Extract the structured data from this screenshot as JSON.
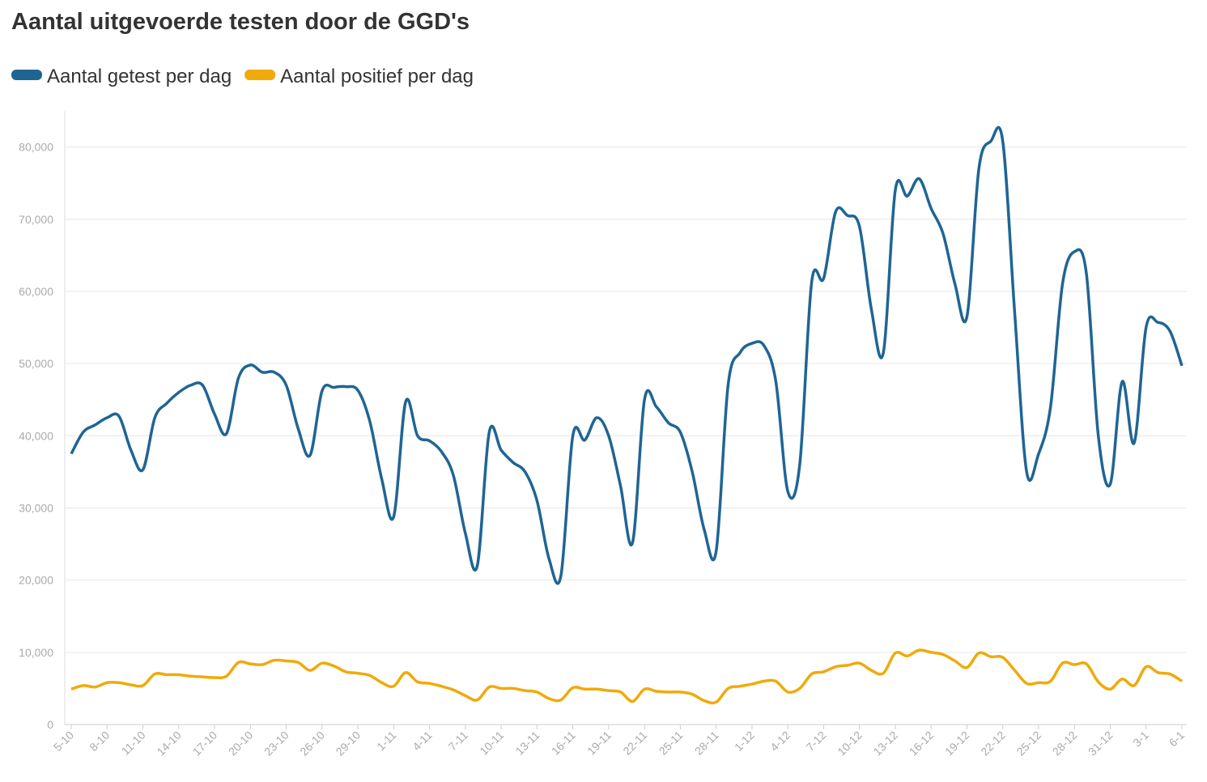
{
  "chart_data": {
    "type": "line",
    "title": "Aantal uitgevoerde testen door de GGD's",
    "categories": [
      "5-10",
      null,
      null,
      "8-10",
      null,
      null,
      "11-10",
      null,
      null,
      "14-10",
      null,
      null,
      "17-10",
      null,
      null,
      "20-10",
      null,
      null,
      "23-10",
      null,
      null,
      "26-10",
      null,
      null,
      "29-10",
      null,
      null,
      "1-11",
      null,
      null,
      "4-11",
      null,
      null,
      "7-11",
      null,
      null,
      "10-11",
      null,
      null,
      "13-11",
      null,
      null,
      "16-11",
      null,
      null,
      "19-11",
      null,
      null,
      "22-11",
      null,
      null,
      "25-11",
      null,
      null,
      "28-11",
      null,
      null,
      "1-12",
      null,
      null,
      "4-12",
      null,
      null,
      "7-12",
      null,
      null,
      "10-12",
      null,
      null,
      "13-12",
      null,
      null,
      "16-12",
      null,
      null,
      "19-12",
      null,
      null,
      "22-12",
      null,
      null,
      "25-12",
      null,
      null,
      "28-12",
      null,
      null,
      "31-12",
      null,
      null,
      "3-1",
      null,
      null,
      "6-1"
    ],
    "series": [
      {
        "name": "Aantal getest per dag",
        "color": "#1f6594",
        "values": [
          37500,
          40500,
          41500,
          42500,
          42700,
          38000,
          35300,
          42500,
          44500,
          46000,
          47000,
          47000,
          43000,
          40300,
          48000,
          49800,
          48800,
          48800,
          47000,
          41000,
          37300,
          46200,
          46700,
          46800,
          46300,
          42000,
          34000,
          28800,
          44700,
          40000,
          39300,
          37800,
          34500,
          26500,
          22000,
          40500,
          38000,
          36300,
          35000,
          31000,
          23000,
          20600,
          40000,
          39400,
          42500,
          40000,
          33000,
          25200,
          45000,
          44000,
          41800,
          40500,
          35000,
          27000,
          24000,
          47000,
          51500,
          52800,
          52500,
          47500,
          32300,
          36000,
          61300,
          61800,
          71000,
          70500,
          69000,
          57500,
          51500,
          74000,
          73200,
          75600,
          71500,
          68000,
          61000,
          56500,
          77000,
          80800,
          80800,
          57000,
          35000,
          37500,
          44000,
          61000,
          65500,
          62500,
          40000,
          33300,
          47500,
          39000,
          55000,
          55700,
          54500,
          49700
        ]
      },
      {
        "name": "Aantal positief per dag",
        "color": "#f0aa0a",
        "values": [
          4900,
          5400,
          5200,
          5800,
          5800,
          5500,
          5400,
          7000,
          6900,
          6900,
          6700,
          6600,
          6500,
          6700,
          8600,
          8400,
          8300,
          8900,
          8800,
          8600,
          7500,
          8500,
          8100,
          7300,
          7100,
          6800,
          5800,
          5300,
          7200,
          5900,
          5700,
          5300,
          4800,
          4000,
          3400,
          5200,
          5000,
          5000,
          4700,
          4500,
          3600,
          3400,
          5100,
          4900,
          4900,
          4700,
          4500,
          3200,
          4900,
          4600,
          4500,
          4500,
          4200,
          3300,
          3100,
          5000,
          5300,
          5600,
          6000,
          6000,
          4500,
          5000,
          7000,
          7300,
          8000,
          8200,
          8500,
          7500,
          7100,
          9900,
          9500,
          10300,
          10000,
          9700,
          8800,
          7900,
          9900,
          9400,
          9300,
          7500,
          5700,
          5800,
          6000,
          8500,
          8300,
          8400,
          5900,
          4900,
          6300,
          5400,
          8000,
          7200,
          7000,
          6000
        ]
      }
    ],
    "ylim": [
      0,
      85000
    ],
    "yticks": [
      0,
      {
        "value": 10000,
        "label": "10,000"
      },
      {
        "value": 20000,
        "label": "20,000"
      },
      {
        "value": 30000,
        "label": "30,000"
      },
      {
        "value": 40000,
        "label": "40,000"
      },
      {
        "value": 50000,
        "label": "50,000"
      },
      {
        "value": 60000,
        "label": "60,000"
      },
      {
        "value": 70000,
        "label": "70,000"
      },
      {
        "value": 80000,
        "label": "80,000"
      }
    ],
    "grid": true
  }
}
